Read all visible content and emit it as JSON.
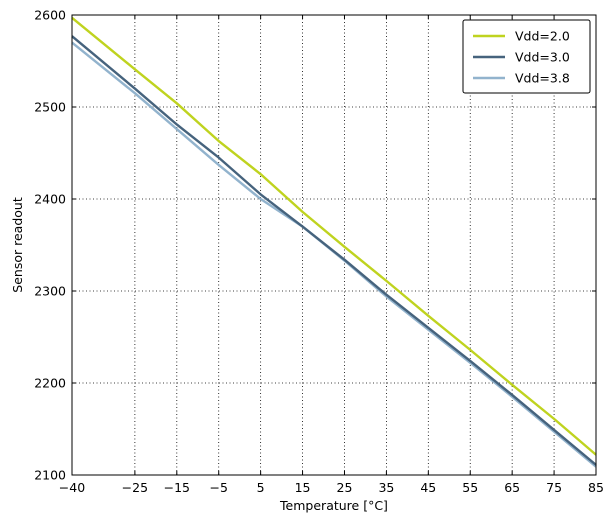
{
  "chart_data": {
    "type": "line",
    "title": "",
    "xlabel": "Temperature [°C]",
    "ylabel": "Sensor readout",
    "xlim": [
      -40,
      85
    ],
    "ylim": [
      2100,
      2600
    ],
    "xticks": [
      -40,
      -25,
      -15,
      -5,
      5,
      15,
      25,
      35,
      45,
      55,
      65,
      75,
      85
    ],
    "xtick_labels": [
      "−40",
      "−25",
      "−15",
      "−5",
      "5",
      "15",
      "25",
      "35",
      "45",
      "55",
      "65",
      "75",
      "85"
    ],
    "yticks": [
      2100,
      2200,
      2300,
      2400,
      2500,
      2600
    ],
    "ytick_labels": [
      "2100",
      "2200",
      "2300",
      "2400",
      "2500",
      "2600"
    ],
    "grid": true,
    "legend_position": "top-right",
    "x": [
      -40,
      -25,
      -15,
      -5,
      5,
      15,
      25,
      35,
      45,
      55,
      65,
      75,
      85
    ],
    "series": [
      {
        "name": "Vdd=2.0",
        "color": "#bfd31f",
        "values": [
          2597,
          2541,
          2504,
          2463,
          2427,
          2386,
          2348,
          2311,
          2273,
          2236,
          2198,
          2161,
          2122
        ]
      },
      {
        "name": "Vdd=3.0",
        "color": "#46637d",
        "values": [
          2577,
          2520,
          2481,
          2445,
          2405,
          2370,
          2334,
          2296,
          2260,
          2224,
          2187,
          2149,
          2111
        ]
      },
      {
        "name": "Vdd=3.8",
        "color": "#92b3cd",
        "values": [
          2570,
          2515,
          2476,
          2437,
          2400,
          2370,
          2333,
          2294,
          2258,
          2222,
          2185,
          2147,
          2109
        ]
      }
    ]
  }
}
